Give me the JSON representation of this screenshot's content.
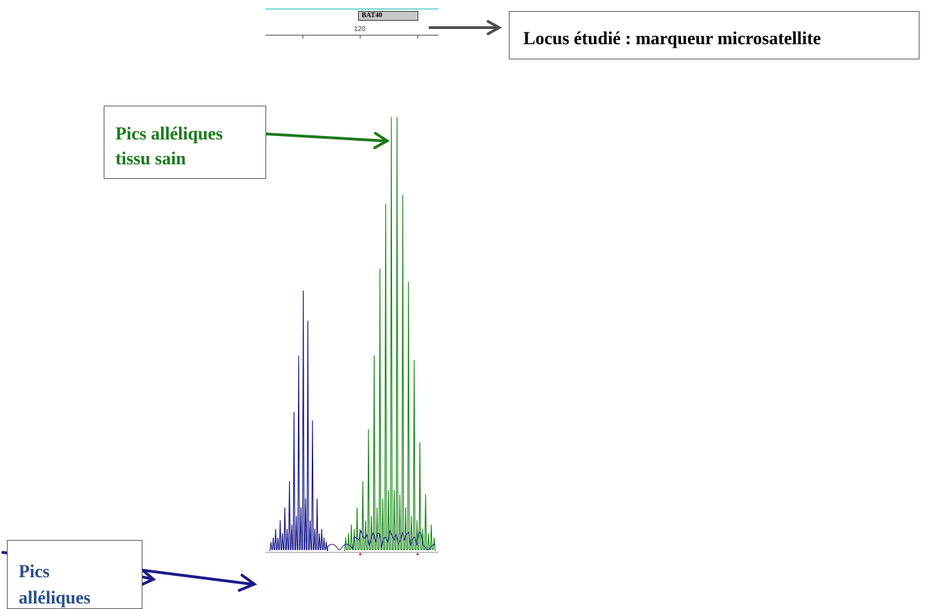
{
  "locus": {
    "marker_name": "BAT40",
    "scale_tick": "120",
    "callout": "Locus étudié : marqueur microsatellite"
  },
  "healthy_callout": {
    "line1": "Pics alléliques",
    "line2": "tissu sain"
  },
  "tumor_callout": {
    "line1": "Pics",
    "line2": "alléliques"
  },
  "colors": {
    "healthy_trace": "#1a8a1a",
    "tumor_trace": "#1a1a8a",
    "green_arrow": "#1a7a1a",
    "blue_arrow": "#1a1a8a",
    "grey_arrow": "#505050",
    "marker_bar": "#4fc8c8"
  },
  "chart_data": {
    "type": "line",
    "series": [
      {
        "values": [
          0.02,
          0.03,
          0.05,
          0.03,
          0.07,
          0.04,
          0.1,
          0.05,
          0.16,
          0.06,
          0.32,
          0.08,
          0.45,
          0.1,
          0.6,
          0.12,
          0.53,
          0.07,
          0.3,
          0.05,
          0.12,
          0.04,
          0.05,
          0.03,
          0.02
        ]
      },
      {
        "values": [
          0.03,
          0.04,
          0.06,
          0.05,
          0.1,
          0.05,
          0.16,
          0.07,
          0.28,
          0.08,
          0.45,
          0.1,
          0.65,
          0.12,
          0.8,
          0.14,
          1.0,
          0.14,
          1.0,
          0.13,
          0.82,
          0.1,
          0.62,
          0.08,
          0.44,
          0.07,
          0.25,
          0.05,
          0.13,
          0.04,
          0.06,
          0.03
        ]
      }
    ]
  }
}
